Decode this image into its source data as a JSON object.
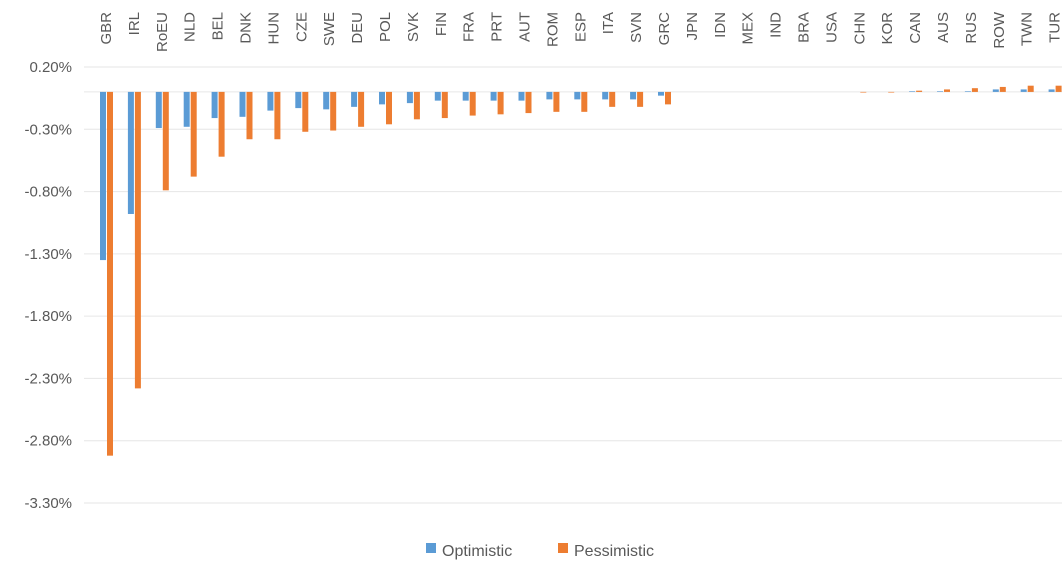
{
  "chart_data": {
    "type": "bar",
    "title": "",
    "xlabel": "",
    "ylabel": "",
    "ylim": [
      -3.3,
      0.2
    ],
    "yticks": [
      "0.20%",
      "-0.30%",
      "-0.80%",
      "-1.30%",
      "-1.80%",
      "-2.30%",
      "-2.80%",
      "-3.30%"
    ],
    "ytick_values": [
      0.2,
      -0.3,
      -0.8,
      -1.3,
      -1.8,
      -2.3,
      -2.8,
      -3.3
    ],
    "grid": true,
    "legend_position": "bottom",
    "categories": [
      "GBR",
      "IRL",
      "RoEU",
      "NLD",
      "BEL",
      "DNK",
      "HUN",
      "CZE",
      "SWE",
      "DEU",
      "POL",
      "SVK",
      "FIN",
      "FRA",
      "PRT",
      "AUT",
      "ROM",
      "ESP",
      "ITA",
      "SVN",
      "GRC",
      "JPN",
      "IDN",
      "MEX",
      "IND",
      "BRA",
      "USA",
      "CHN",
      "KOR",
      "CAN",
      "AUS",
      "RUS",
      "ROW",
      "TWN",
      "TUR"
    ],
    "series": [
      {
        "name": "Optimistic",
        "color": "#5b9bd5",
        "values": [
          -1.35,
          -0.98,
          -0.29,
          -0.28,
          -0.21,
          -0.2,
          -0.15,
          -0.13,
          -0.14,
          -0.12,
          -0.1,
          -0.09,
          -0.07,
          -0.07,
          -0.07,
          -0.07,
          -0.06,
          -0.06,
          -0.06,
          -0.06,
          -0.03,
          0,
          0,
          0,
          0,
          0,
          0,
          0,
          0,
          0.005,
          0.005,
          0.005,
          0.02,
          0.02,
          0.02
        ]
      },
      {
        "name": "Pessimistic",
        "color": "#ed7d31",
        "values": [
          -2.92,
          -2.38,
          -0.79,
          -0.68,
          -0.52,
          -0.38,
          -0.38,
          -0.32,
          -0.31,
          -0.28,
          -0.26,
          -0.22,
          -0.21,
          -0.19,
          -0.18,
          -0.17,
          -0.16,
          -0.16,
          -0.12,
          -0.12,
          -0.1,
          0,
          0,
          0,
          0,
          0,
          0,
          -0.005,
          -0.005,
          0.01,
          0.02,
          0.03,
          0.04,
          0.05,
          0.05
        ]
      }
    ]
  }
}
